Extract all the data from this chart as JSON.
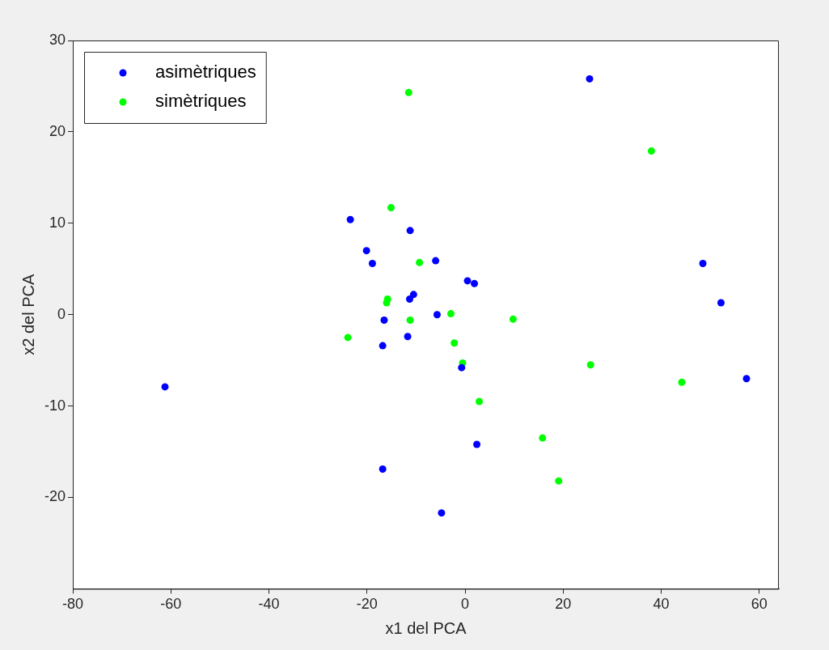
{
  "chart_data": {
    "type": "scatter",
    "xlabel": "x1 del PCA",
    "ylabel": "x2 del PCA",
    "xlim": [
      -80,
      64
    ],
    "ylim": [
      -30,
      30
    ],
    "xticks": [
      -80,
      -60,
      -40,
      -20,
      0,
      20,
      40,
      60
    ],
    "yticks": [
      -20,
      -10,
      0,
      10,
      20,
      30
    ],
    "grid": false,
    "legend": "top left",
    "marker": "circle",
    "series": [
      {
        "name": "asimètriques",
        "color": "#0000ff",
        "x": [
          -61.2,
          -23.4,
          -20.1,
          -18.9,
          -16.5,
          -16.8,
          -16.8,
          -11.2,
          -10.5,
          -11.3,
          -11.7,
          -6.0,
          -5.7,
          -4.8,
          -0.7,
          0.5,
          1.9,
          2.4,
          25.4,
          48.5,
          52.2,
          57.4
        ],
        "values": [
          -7.9,
          10.4,
          7.0,
          5.6,
          -0.6,
          -3.4,
          -16.9,
          9.2,
          2.2,
          1.7,
          -2.4,
          5.9,
          0.0,
          -21.7,
          -5.8,
          3.7,
          3.4,
          -14.2,
          25.8,
          5.6,
          1.3,
          -7.0
        ]
      },
      {
        "name": "simètriques",
        "color": "#00ff00",
        "x": [
          -23.9,
          -16.0,
          -15.8,
          -15.1,
          -11.5,
          -11.2,
          -9.3,
          -2.9,
          -2.2,
          -0.5,
          2.9,
          9.8,
          15.8,
          19.1,
          25.6,
          38.0,
          44.2
        ],
        "values": [
          -2.5,
          1.3,
          1.7,
          11.7,
          24.3,
          -0.6,
          5.7,
          0.1,
          -3.1,
          -5.3,
          -9.5,
          -0.5,
          -13.5,
          -18.2,
          -5.5,
          17.9,
          -7.4
        ]
      }
    ]
  }
}
